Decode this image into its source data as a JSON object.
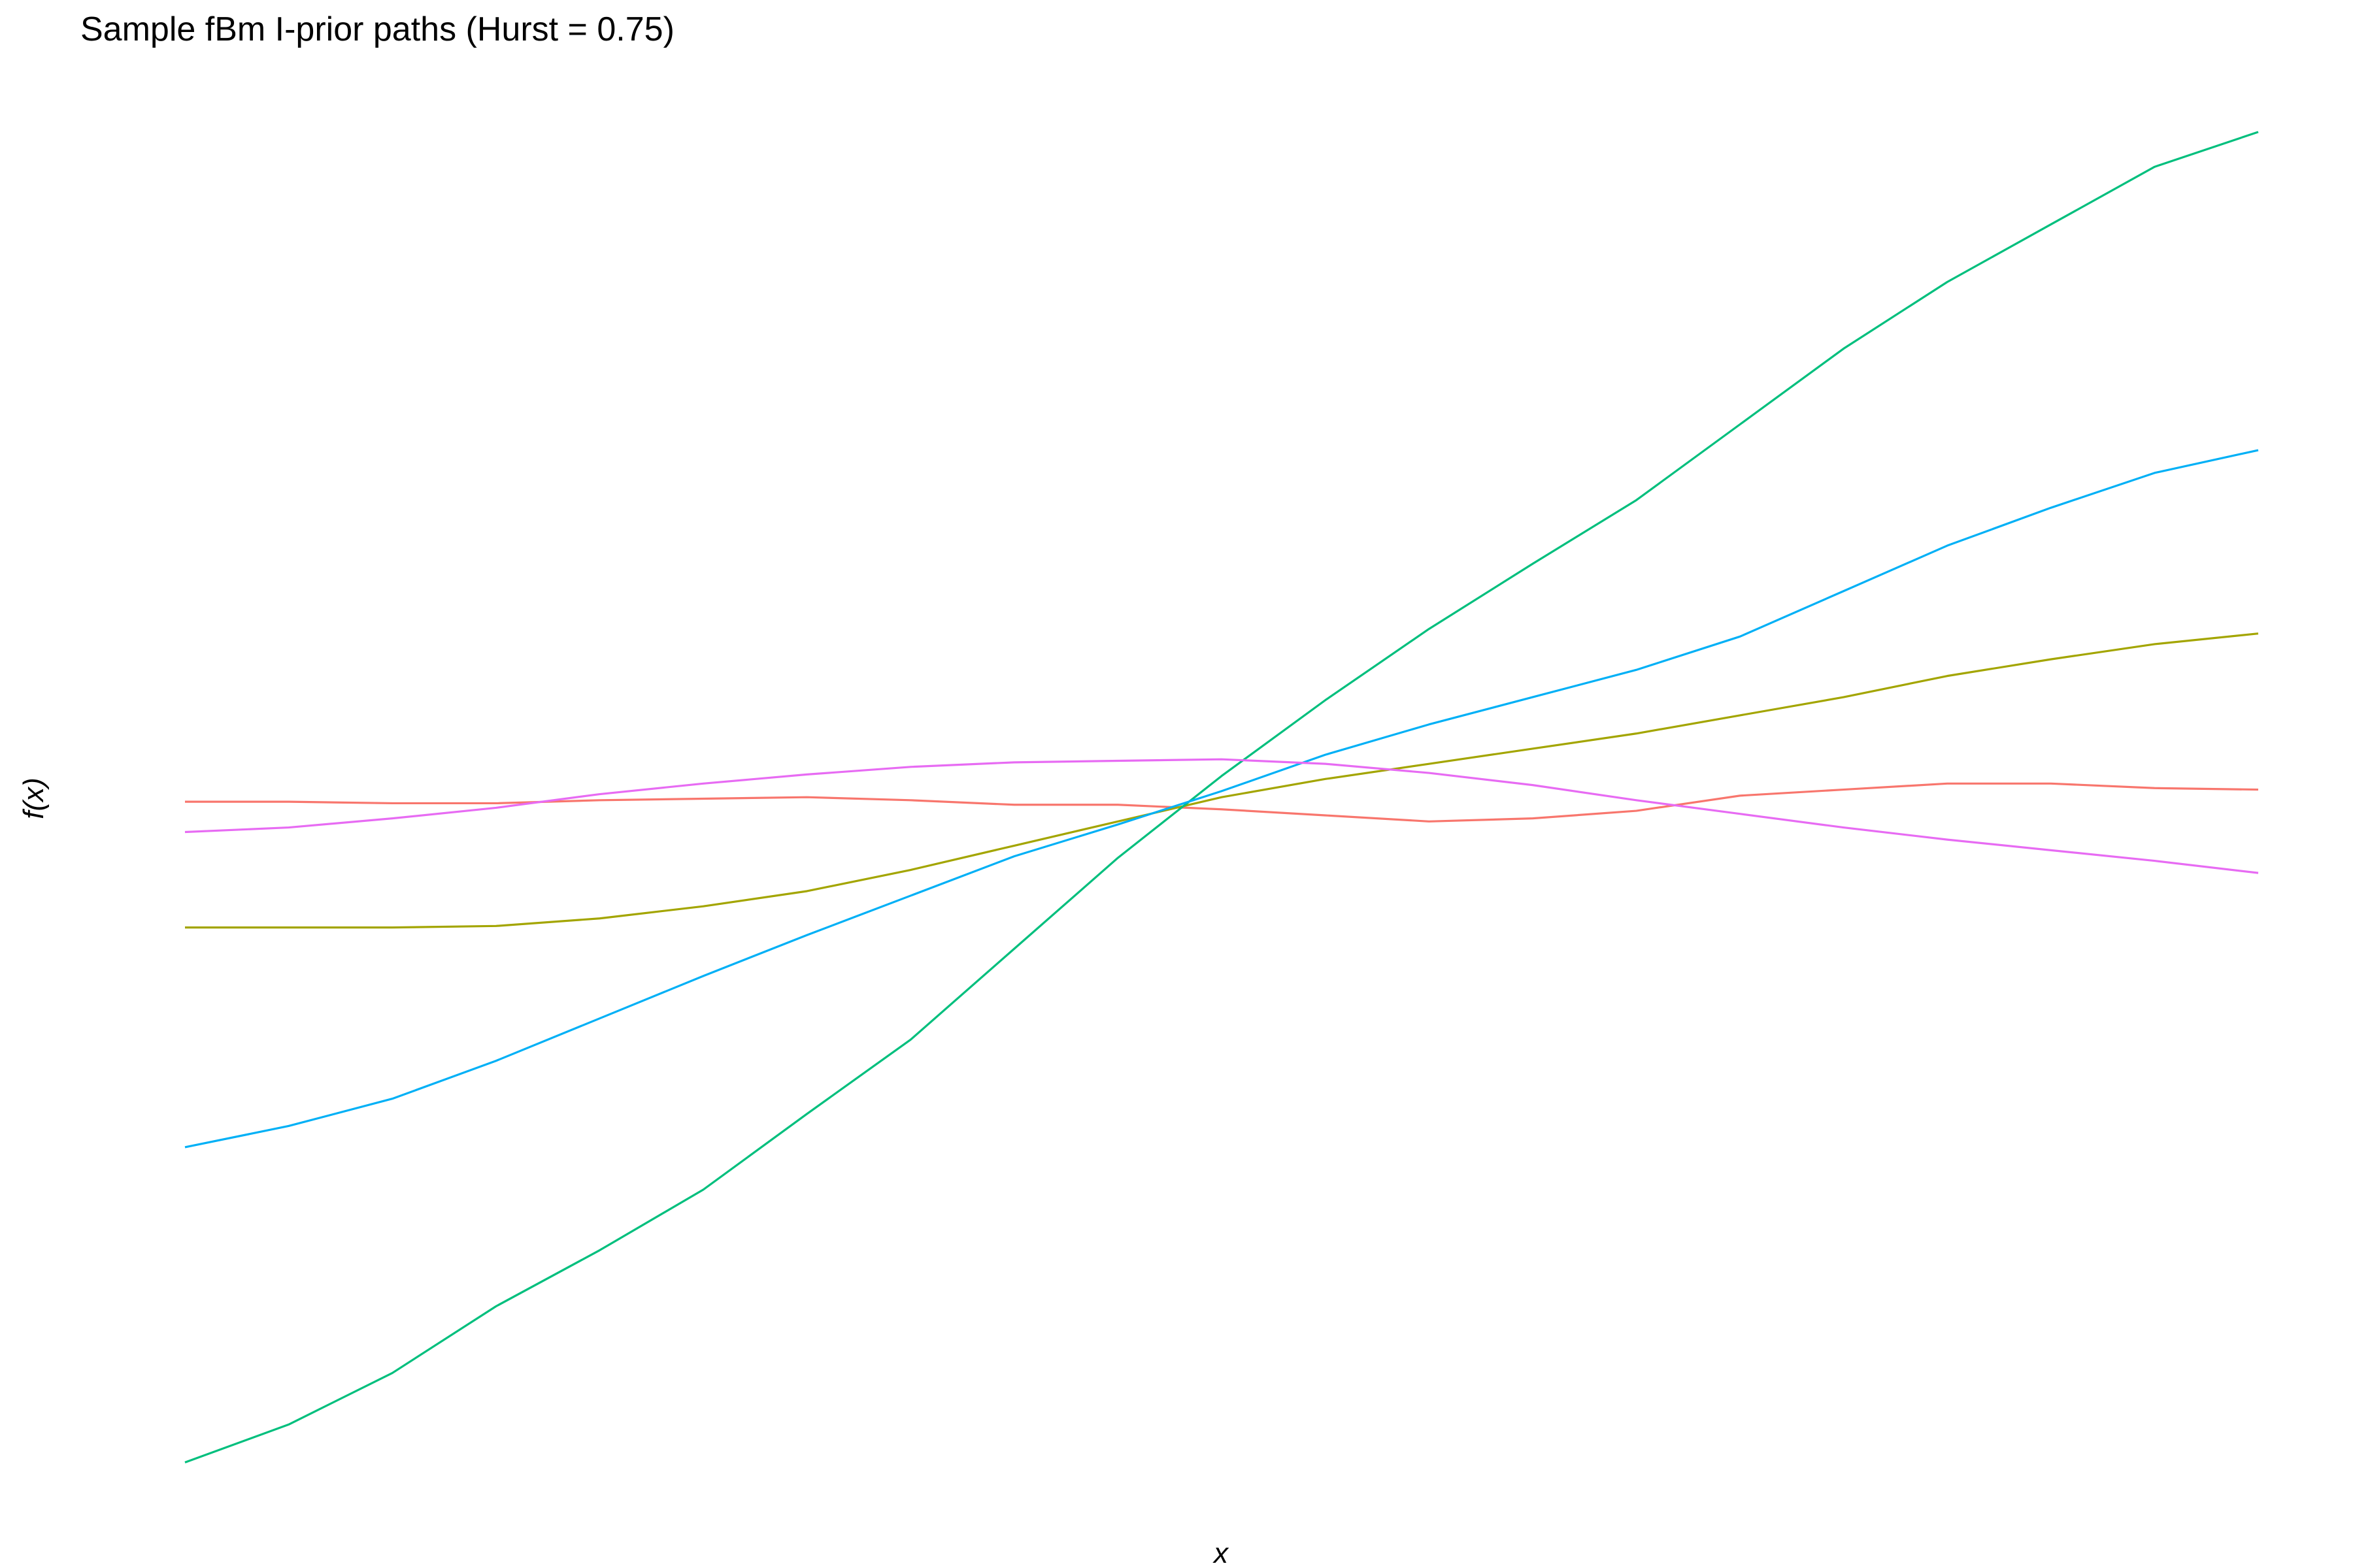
{
  "chart_data": {
    "type": "line",
    "title": "Sample fBm I-prior paths (Hurst = 0.75)",
    "x_label": "x",
    "y_label": "f(x)",
    "x": [
      0,
      0.05,
      0.1,
      0.15,
      0.2,
      0.25,
      0.3,
      0.35,
      0.4,
      0.45,
      0.5,
      0.55,
      0.6,
      0.65,
      0.7,
      0.75,
      0.8,
      0.85,
      0.9,
      0.95,
      1
    ],
    "xlim": [
      0,
      1
    ],
    "ylim": [
      -4.6,
      4.7
    ],
    "grid": false,
    "series": [
      {
        "color": "#F8766D",
        "values": [
          0.03,
          0.03,
          0.02,
          0.02,
          0.04,
          0.05,
          0.06,
          0.04,
          0.01,
          0.01,
          -0.02,
          -0.06,
          -0.1,
          -0.08,
          -0.03,
          0.07,
          0.11,
          0.15,
          0.15,
          0.12,
          0.11
        ]
      },
      {
        "color": "#A3A500",
        "values": [
          -0.8,
          -0.8,
          -0.8,
          -0.79,
          -0.74,
          -0.66,
          -0.56,
          -0.42,
          -0.26,
          -0.1,
          0.06,
          0.18,
          0.28,
          0.38,
          0.48,
          0.6,
          0.72,
          0.86,
          0.97,
          1.07,
          1.14
        ]
      },
      {
        "color": "#00BF7D",
        "values": [
          -4.33,
          -4.08,
          -3.74,
          -3.3,
          -2.93,
          -2.53,
          -2.03,
          -1.54,
          -0.94,
          -0.34,
          0.2,
          0.7,
          1.17,
          1.6,
          2.02,
          2.52,
          3.02,
          3.46,
          3.84,
          4.22,
          4.45
        ]
      },
      {
        "color": "#00B0F6",
        "values": [
          -2.25,
          -2.11,
          -1.93,
          -1.68,
          -1.4,
          -1.12,
          -0.85,
          -0.59,
          -0.33,
          -0.12,
          0.1,
          0.34,
          0.54,
          0.72,
          0.9,
          1.12,
          1.42,
          1.72,
          1.97,
          2.2,
          2.35
        ]
      },
      {
        "color": "#E76BF3",
        "values": [
          -0.17,
          -0.14,
          -0.08,
          -0.01,
          0.08,
          0.15,
          0.21,
          0.26,
          0.29,
          0.3,
          0.31,
          0.28,
          0.22,
          0.14,
          0.04,
          -0.05,
          -0.14,
          -0.22,
          -0.29,
          -0.36,
          -0.44
        ]
      }
    ]
  }
}
